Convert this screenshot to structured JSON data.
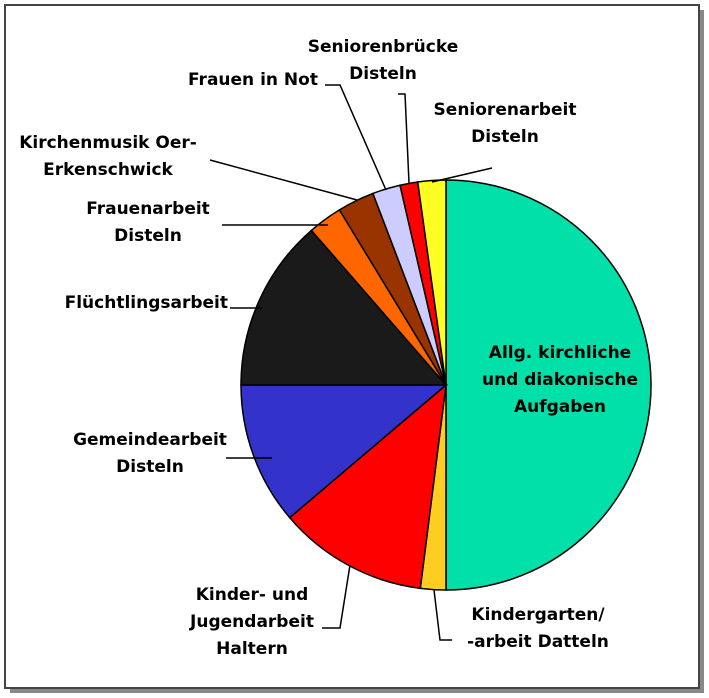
{
  "chart_data": {
    "type": "pie",
    "categories": [
      "Allg. kirchliche\nund diakonische\nAufgaben",
      "Kindergarten/\n-arbeit Datteln",
      "Kinder- und\nJugendarbeit\nHaltern",
      "Gemeindearbeit\nDisteln",
      "Flüchtlingsarbeit",
      "Frauenarbeit\nDisteln",
      "Kirchenmusik Oer-\nErkenschwick",
      "Frauen in Not",
      "Seniorenbrücke\nDisteln",
      "Seniorenarbeit\nDisteln"
    ],
    "values": [
      50,
      2,
      11.8,
      11.2,
      13.6,
      2.7,
      2.9,
      2.2,
      1.4,
      2.2
    ],
    "colors": [
      "#00e0a8",
      "#ffcc22",
      "#ff0000",
      "#3333cc",
      "#1a1a1a",
      "#ff6600",
      "#993300",
      "#ccccff",
      "#ff0000",
      "#ffff22"
    ]
  }
}
